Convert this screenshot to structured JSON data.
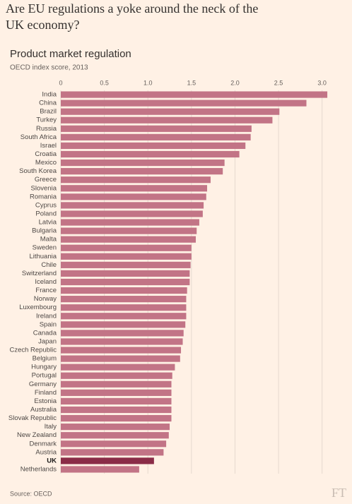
{
  "title": "Are EU regulations a yoke around the neck of the UK economy?",
  "source": "Source: OECD",
  "logo": "FT",
  "chart_data": {
    "type": "barh",
    "title": "Product market regulation",
    "subtitle": "OECD index score, 2013",
    "categories": [
      "India",
      "China",
      "Brazil",
      "Turkey",
      "Russia",
      "South Africa",
      "Israel",
      "Croatia",
      "Mexico",
      "South Korea",
      "Greece",
      "Slovenia",
      "Romania",
      "Cyprus",
      "Poland",
      "Latvia",
      "Bulgaria",
      "Malta",
      "Sweden",
      "Lithuania",
      "Chile",
      "Switzerland",
      "Iceland",
      "France",
      "Norway",
      "Luxembourg",
      "Ireland",
      "Spain",
      "Canada",
      "Japan",
      "Czech Republic",
      "Belgium",
      "Hungary",
      "Portugal",
      "Germany",
      "Finland",
      "Estonia",
      "Australia",
      "Slovak Republic",
      "Italy",
      "New Zealand",
      "Denmark",
      "Austria",
      "UK",
      "Netherlands"
    ],
    "values": [
      3.06,
      2.82,
      2.51,
      2.43,
      2.19,
      2.18,
      2.12,
      2.05,
      1.88,
      1.86,
      1.72,
      1.68,
      1.67,
      1.64,
      1.63,
      1.59,
      1.56,
      1.55,
      1.5,
      1.5,
      1.49,
      1.48,
      1.48,
      1.45,
      1.44,
      1.44,
      1.44,
      1.43,
      1.41,
      1.4,
      1.38,
      1.37,
      1.31,
      1.28,
      1.27,
      1.27,
      1.27,
      1.27,
      1.27,
      1.25,
      1.24,
      1.21,
      1.18,
      1.07,
      0.9
    ],
    "color": "#c27486",
    "colors": [
      "#c27486",
      "#c27486",
      "#c27486",
      "#c27486",
      "#c27486",
      "#c27486",
      "#c27486",
      "#c27486",
      "#c27486",
      "#c27486",
      "#c27486",
      "#c27486",
      "#c27486",
      "#c27486",
      "#c27486",
      "#c27486",
      "#c27486",
      "#c27486",
      "#c27486",
      "#c27486",
      "#c27486",
      "#c27486",
      "#c27486",
      "#c27486",
      "#c27486",
      "#c27486",
      "#c27486",
      "#c27486",
      "#c27486",
      "#c27486",
      "#c27486",
      "#c27486",
      "#c27486",
      "#c27486",
      "#c27486",
      "#c27486",
      "#c27486",
      "#c27486",
      "#c27486",
      "#c27486",
      "#c27486",
      "#c27486",
      "#c27486",
      "#8a2c47",
      "#c27486"
    ],
    "xlim": [
      0,
      3.1
    ],
    "xticks": [
      0,
      0.5,
      {
        "value": 1,
        "label": "1.0"
      },
      1.5,
      {
        "value": 2,
        "label": "2.0"
      },
      2.5,
      {
        "value": 3,
        "label": "3.0"
      }
    ],
    "grid": true
  }
}
